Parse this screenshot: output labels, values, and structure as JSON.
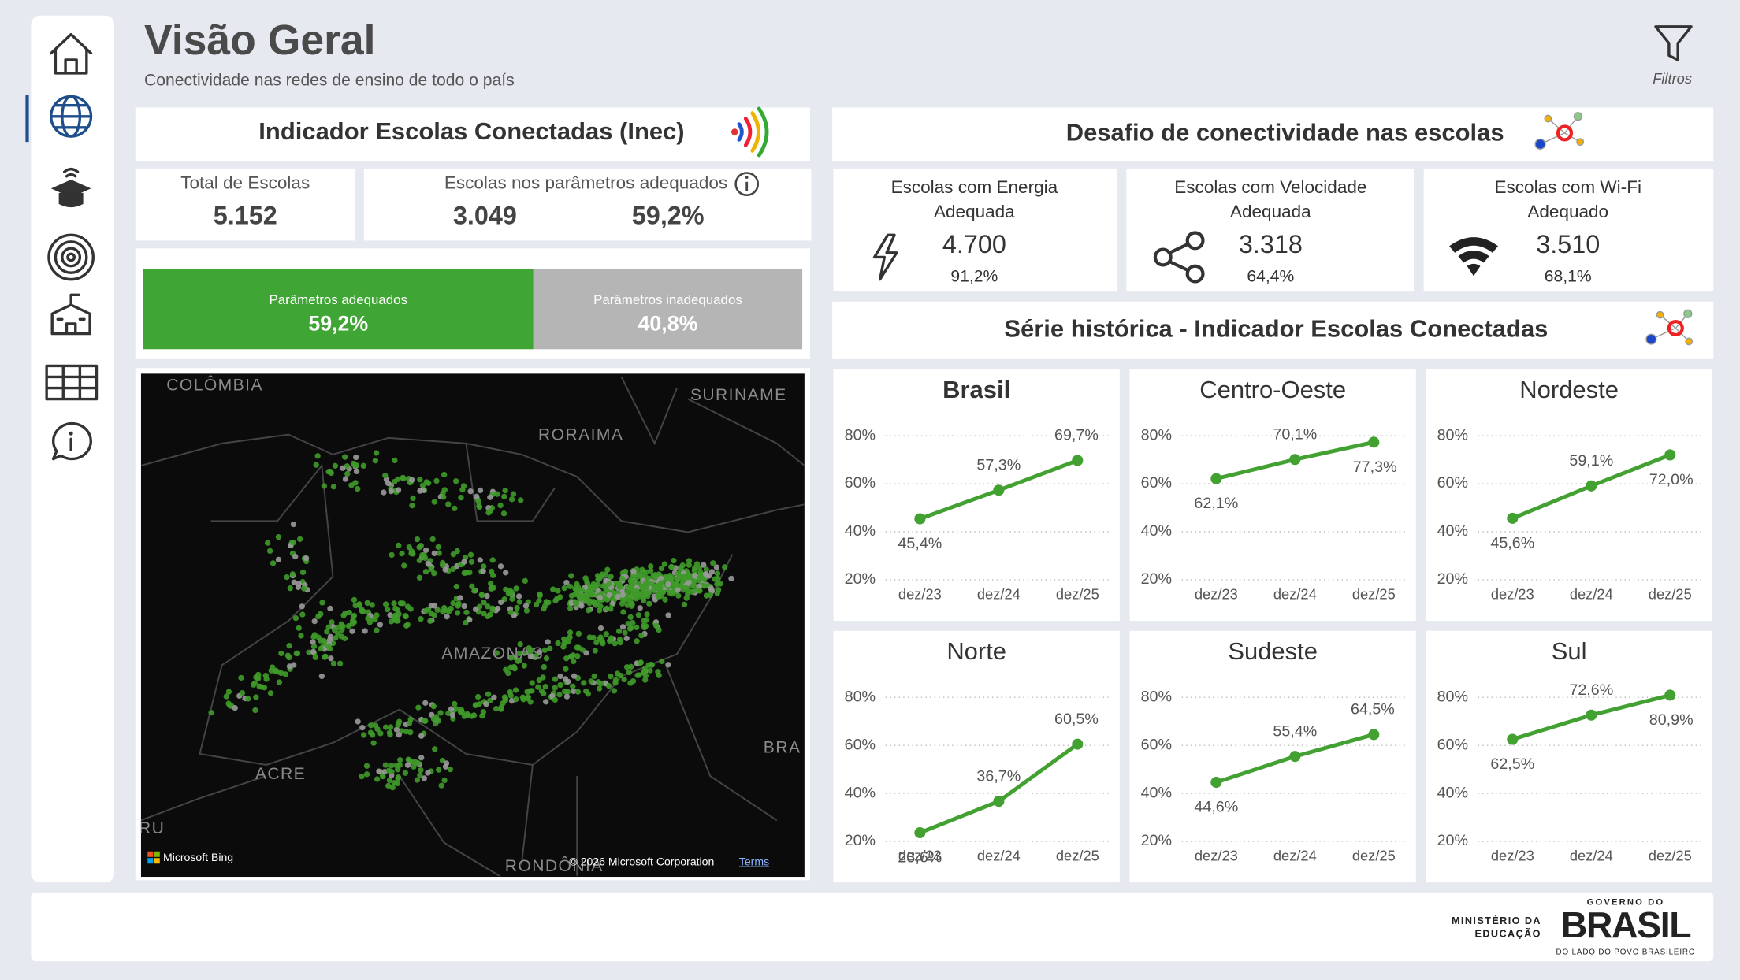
{
  "header": {
    "title": "Visão Geral",
    "subtitle": "Conectividade nas redes de ensino de todo o país",
    "filter_label": "Filtros"
  },
  "inec": {
    "title": "Indicador Escolas Conectadas (Inec)",
    "kpis": [
      {
        "label": "Total de Escolas",
        "values": [
          "5.152"
        ]
      },
      {
        "label": "Escolas nos parâmetros adequados",
        "values": [
          "3.049",
          "59,2%"
        ]
      }
    ]
  },
  "challenge": {
    "title": "Desafio de conectividade nas escolas",
    "cards": [
      {
        "label_lines": [
          "Escolas com Energia",
          "Adequada"
        ],
        "value": "4.700",
        "percent": "91,2%"
      },
      {
        "label_lines": [
          "Escolas com Velocidade",
          "Adequada"
        ],
        "value": "3.318",
        "percent": "64,4%"
      },
      {
        "label_lines": [
          "Escolas com Wi-Fi",
          "Adequado"
        ],
        "value": "3.510",
        "percent": "68,1%"
      }
    ]
  },
  "history": {
    "title": "Série histórica - Indicador Escolas Conectadas"
  },
  "map": {
    "labels": [
      "COLÔMBIA",
      "SURINAME",
      "RORAIMA",
      "AMAZONAS",
      "ACRE",
      "RONDÔNIA",
      "BRA",
      "RU"
    ],
    "attribution": "Microsoft Bing",
    "copyright": "© 2026 Microsoft Corporation",
    "terms": "Terms"
  },
  "footer": {
    "ministry_lines": [
      "MINISTÉRIO DA",
      "EDUCAÇÃO"
    ],
    "gov_top": "GOVERNO DO",
    "gov_main": "BRASIL",
    "gov_tagline": "DO LADO DO POVO BRASILEIRO"
  },
  "chart_data": [
    {
      "type": "stacked_bar",
      "series": [
        {
          "name": "Parâmetros adequados",
          "color": "#3fa535",
          "values": [
            59.2
          ],
          "value_labels": [
            "59,2%"
          ]
        },
        {
          "name": "Parâmetros inadequados",
          "color": "#b5b5b5",
          "values": [
            40.8
          ],
          "value_labels": [
            "40,8%"
          ]
        }
      ]
    },
    {
      "type": "line",
      "title": "Brasil",
      "categories": [
        "dez/23",
        "dez/24",
        "dez/25"
      ],
      "series": [
        {
          "color": "#43a132",
          "values": [
            45.4,
            57.3,
            69.7
          ],
          "value_labels": [
            "45,4%",
            "57,3%",
            "69,7%"
          ]
        }
      ],
      "ylim": [
        15,
        85
      ],
      "yticks": [
        {
          "value": 20,
          "label": "20%"
        },
        {
          "value": 40,
          "label": "40%"
        },
        {
          "value": 60,
          "label": "60%"
        },
        {
          "value": 80,
          "label": "80%"
        }
      ],
      "grid": true
    },
    {
      "type": "line",
      "title": "Centro-Oeste",
      "categories": [
        "dez/23",
        "dez/24",
        "dez/25"
      ],
      "series": [
        {
          "color": "#43a132",
          "values": [
            62.1,
            70.1,
            77.3
          ],
          "value_labels": [
            "62,1%",
            "70,1%",
            "77,3%"
          ]
        }
      ],
      "ylim": [
        15,
        85
      ],
      "yticks": [
        {
          "value": 20,
          "label": "20%"
        },
        {
          "value": 40,
          "label": "40%"
        },
        {
          "value": 60,
          "label": "60%"
        },
        {
          "value": 80,
          "label": "80%"
        }
      ],
      "grid": true
    },
    {
      "type": "line",
      "title": "Nordeste",
      "categories": [
        "dez/23",
        "dez/24",
        "dez/25"
      ],
      "series": [
        {
          "color": "#43a132",
          "values": [
            45.6,
            59.1,
            72.0
          ],
          "value_labels": [
            "45,6%",
            "59,1%",
            "72,0%"
          ]
        }
      ],
      "ylim": [
        15,
        85
      ],
      "yticks": [
        {
          "value": 20,
          "label": "20%"
        },
        {
          "value": 40,
          "label": "40%"
        },
        {
          "value": 60,
          "label": "60%"
        },
        {
          "value": 80,
          "label": "80%"
        }
      ],
      "grid": true
    },
    {
      "type": "line",
      "title": "Norte",
      "categories": [
        "dez/23",
        "dez/24",
        "dez/25"
      ],
      "series": [
        {
          "color": "#43a132",
          "values": [
            23.6,
            36.7,
            60.5
          ],
          "value_labels": [
            "23,6%",
            "36,7%",
            "60,5%"
          ]
        }
      ],
      "ylim": [
        15,
        85
      ],
      "yticks": [
        {
          "value": 20,
          "label": "20%"
        },
        {
          "value": 40,
          "label": "40%"
        },
        {
          "value": 60,
          "label": "60%"
        },
        {
          "value": 80,
          "label": "80%"
        }
      ],
      "grid": true
    },
    {
      "type": "line",
      "title": "Sudeste",
      "categories": [
        "dez/23",
        "dez/24",
        "dez/25"
      ],
      "series": [
        {
          "color": "#43a132",
          "values": [
            44.6,
            55.4,
            64.5
          ],
          "value_labels": [
            "44,6%",
            "55,4%",
            "64,5%"
          ]
        }
      ],
      "ylim": [
        15,
        85
      ],
      "yticks": [
        {
          "value": 20,
          "label": "20%"
        },
        {
          "value": 40,
          "label": "40%"
        },
        {
          "value": 60,
          "label": "60%"
        },
        {
          "value": 80,
          "label": "80%"
        }
      ],
      "grid": true
    },
    {
      "type": "line",
      "title": "Sul",
      "categories": [
        "dez/23",
        "dez/24",
        "dez/25"
      ],
      "series": [
        {
          "color": "#43a132",
          "values": [
            62.5,
            72.6,
            80.9
          ],
          "value_labels": [
            "62,5%",
            "72,6%",
            "80,9%"
          ]
        }
      ],
      "ylim": [
        15,
        85
      ],
      "yticks": [
        {
          "value": 20,
          "label": "20%"
        },
        {
          "value": 40,
          "label": "40%"
        },
        {
          "value": 60,
          "label": "60%"
        },
        {
          "value": 80,
          "label": "80%"
        }
      ],
      "grid": true
    }
  ]
}
